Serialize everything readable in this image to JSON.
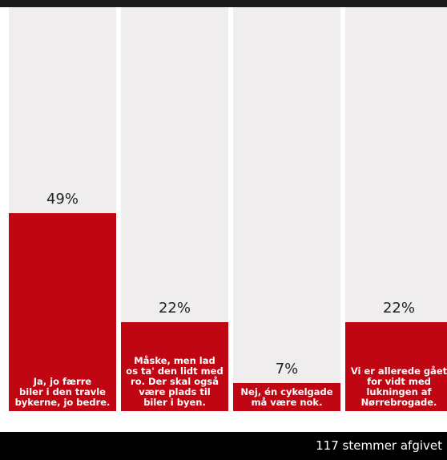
{
  "footer": {
    "votes_text": "117 stemmer afgivet"
  },
  "colors": {
    "bar": "#c00613",
    "track": "#efeded",
    "footer_bg": "#000000"
  },
  "chart_data": {
    "type": "bar",
    "ylim": [
      0,
      100
    ],
    "categories": [
      "Ja, jo færre\nbiler i den travle\nbykerne, jo bedre.",
      "Måske, men lad\nos ta' den lidt med\nro. Der skal også\nvære plads til\nbiler i byen.",
      "Nej, én cykelgade\nmå være nok.",
      "Vi er allerede gået\nfor vidt med\nlukningen af\nNørrebrogade."
    ],
    "values": [
      49,
      22,
      7,
      22
    ],
    "value_labels": [
      "49%",
      "22%",
      "7%",
      "22%"
    ]
  }
}
